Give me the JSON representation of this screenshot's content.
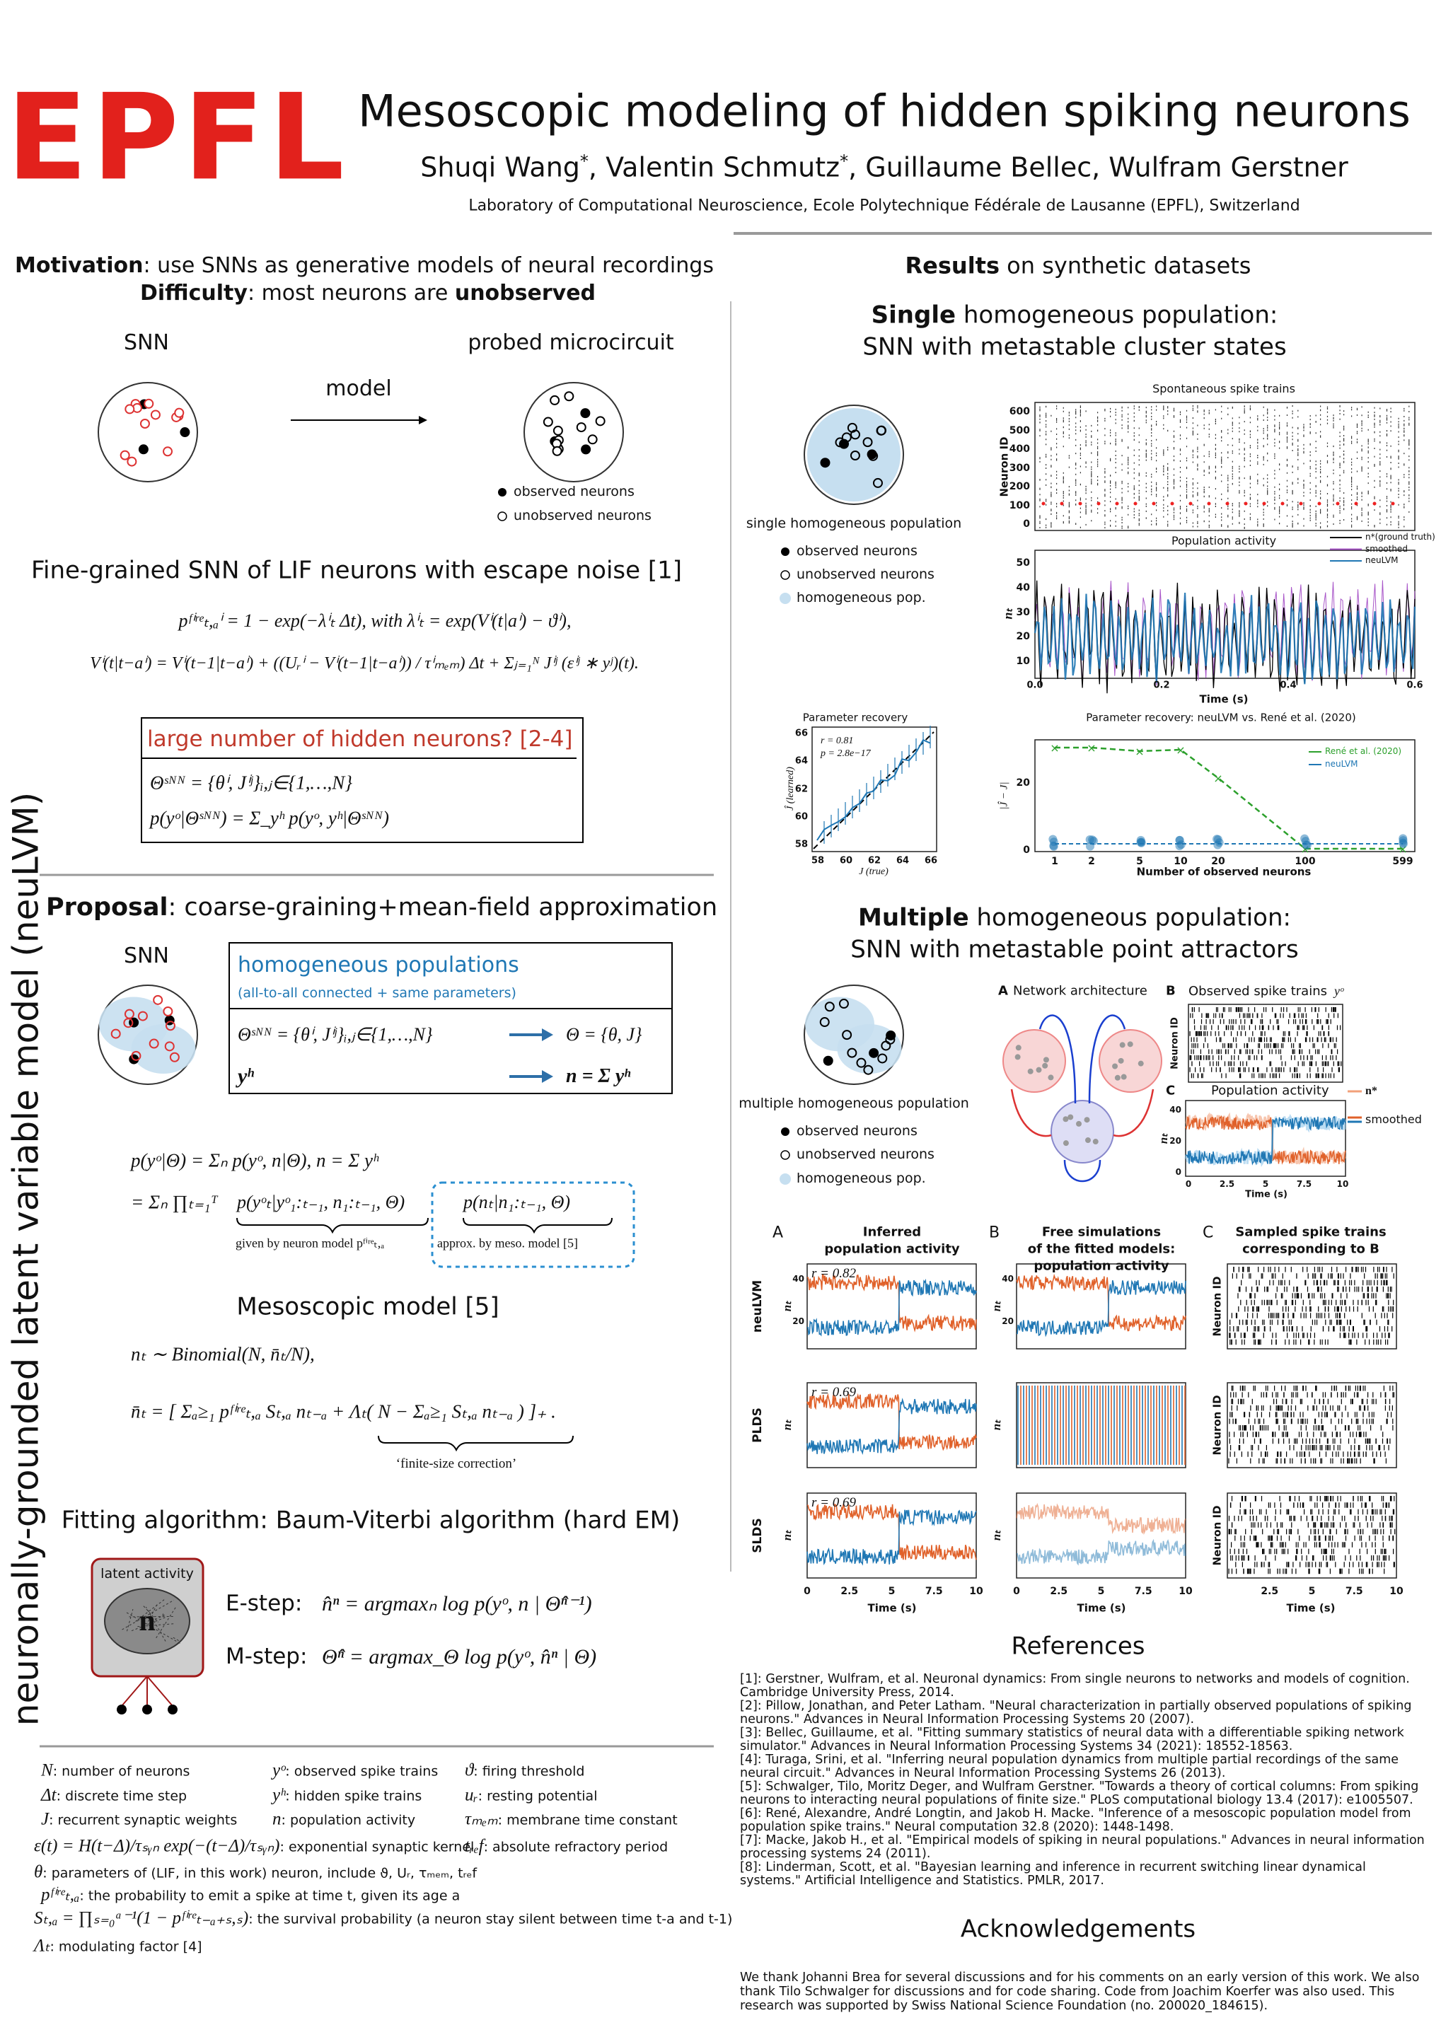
{
  "header": {
    "logo": "EPFL",
    "title": "Mesoscopic modeling of hidden spiking neurons",
    "authors": [
      "Shuqi Wang",
      "*",
      ", Valentin Schmutz",
      "*",
      ", Guillaume Bellec, Wulfram Gerstner"
    ],
    "affiliation": "Laboratory of Computational Neuroscience, Ecole Polytechnique Fédérale de Lausanne (EPFL), Switzerland"
  },
  "side_label": "neuronally-grounded latent variable model (neuLVM)",
  "motivation": {
    "label": "Motivation",
    "text": ": use SNNs as generative models of neural recordings",
    "difficulty_label": "Difficulty",
    "difficulty_text": ": most neurons are ",
    "difficulty_emph": "unobserved",
    "snn": "SNN",
    "probed": "probed microcircuit",
    "arrow_label": "model",
    "legend": [
      "observed neurons",
      "unobserved neurons"
    ]
  },
  "fine_grained": {
    "title": "Fine-grained SNN of LIF neurons with escape noise [1]",
    "eq1": "pᶠⁱʳᵉₜ,ₐⁱ = 1 − exp(−λⁱₜ Δt),    with λⁱₜ = exp(Vⁱ(t|aⁱ) − ϑⁱ),",
    "eq2": "Vⁱ(t|t−aⁱ) = Vⁱ(t−1|t−aⁱ) + ((Uᵣⁱ − Vⁱ(t−1|t−aⁱ)) / τⁱₘₑₘ) Δt + Σⱼ₌₁ᴺ Jⁱʲ (εⁱʲ ∗ yʲ)(t).",
    "box_title": "large number of hidden neurons? [2-4]",
    "box_eq1": "Θˢᴺᴺ = {θⁱ, Jⁱʲ}ᵢ,ⱼ∈{1,…,N}",
    "box_eq2": "p(yᵒ|Θˢᴺᴺ) = Σ_yʰ p(yᵒ, yʰ|Θˢᴺᴺ)"
  },
  "proposal": {
    "label": "Proposal",
    "text": ": coarse-graining+mean-field approximation",
    "snn": "SNN",
    "box_title": "homogeneous populations",
    "box_subtitle": "(all-to-all connected + same parameters)",
    "map1_left": "Θˢᴺᴺ = {θⁱ, Jⁱʲ}ᵢ,ⱼ∈{1,…,N}",
    "map1_right": "Θ = {θ, J}",
    "map2_left": "yʰ",
    "map2_right": "n = Σ yʰ",
    "eq1": "p(yᵒ|Θ) = Σₙ p(yᵒ, n|Θ),  n = Σ yʰ",
    "eq2_a": "= Σₙ ∏ₜ₌₁ᵀ",
    "eq2_b": "p(yᵒₜ|yᵒ₁:ₜ₋₁, n₁:ₜ₋₁, Θ)",
    "eq2_c": "p(nₜ|n₁:ₜ₋₁, Θ)",
    "note_b": "given by neuron model pᶠⁱʳᵉₜ,ₐ",
    "note_c": "approx. by meso. model [5]"
  },
  "mesoscopic": {
    "title": "Mesoscopic model [5]",
    "eq1": "nₜ ∼ Binomial(N, n̄ₜ/N),",
    "eq2": "n̄ₜ = [ Σₐ≥₁ pᶠⁱʳᵉₜ,ₐ Sₜ,ₐ nₜ₋ₐ + Λₜ( N − Σₐ≥₁ Sₜ,ₐ nₜ₋ₐ ) ]₊ .",
    "note": "‘finite-size correction’"
  },
  "fitting": {
    "title": "Fitting algorithm: Baum-Viterbi algorithm (hard EM)",
    "latent": "latent activity",
    "n": "n",
    "estep_label": "E-step:",
    "estep": "n̂ⁿ = argmaxₙ log p(yᵒ, n | Θ̂ⁿ⁻¹)",
    "mstep_label": "M-step:",
    "mstep": "Θ̂ⁿ = argmax_Θ log p(yᵒ, n̂ⁿ | Θ)"
  },
  "notation": [
    {
      "symbol": "N",
      "text": ": number of neurons"
    },
    {
      "symbol": "yᵒ",
      "text": ": observed spike trains"
    },
    {
      "symbol": "ϑ",
      "text": ": firing threshold"
    },
    {
      "symbol": "Δt",
      "text": ": discrete time step"
    },
    {
      "symbol": "yʰ",
      "text": ": hidden spike trains"
    },
    {
      "symbol": "uᵣ",
      "text": ": resting potential"
    },
    {
      "symbol": "J",
      "text": ": recurrent synaptic weights"
    },
    {
      "symbol": "n",
      "text": ": population activity"
    },
    {
      "symbol": "τₘₑₘ",
      "text": ": membrane time constant"
    },
    {
      "symbol": "ε(t) = H(t−Δ)/τₛᵧₙ exp(−(t−Δ)/τₛᵧₙ)",
      "text": ": exponential synaptic kernel"
    },
    {
      "symbol": "tᵣₑf",
      "text": ": absolute refractory period"
    },
    {
      "symbol": "θ",
      "text": ": parameters of (LIF, in this work) neuron, include ϑ, Uᵣ, τₘₑₘ, tᵣₑf"
    },
    {
      "symbol": "pᶠⁱʳᵉₜ,ₐ",
      "text": ": the probability to emit a spike at time t, given its age a"
    },
    {
      "symbol": "Sₜ,ₐ = ∏ₛ₌₀ᵃ⁻¹(1 − pᶠⁱʳᵉₜ₋ₐ₊ₛ,ₛ)",
      "text": ": the survival probability (a neuron stay silent between time t-a and t-1)"
    },
    {
      "symbol": "Λₜ",
      "text": ": modulating factor [4]"
    }
  ],
  "results": {
    "title_bold": "Results",
    "title_rest": " on synthetic datasets",
    "single": {
      "title_bold": "Single",
      "title_rest": " homogeneous population:",
      "subtitle": "SNN with metastable cluster states",
      "caption": "single homogeneous population",
      "legend": [
        "observed neurons",
        "unobserved neurons",
        "homogeneous pop."
      ],
      "raster": {
        "title": "Spontaneous spike trains",
        "ylabel": "Neuron ID",
        "yticks": [
          "600",
          "500",
          "400",
          "300",
          "200",
          "100",
          "0"
        ]
      },
      "activity": {
        "title": "Population activity",
        "ylabel": "nₜ",
        "yticks": [
          "50",
          "40",
          "30",
          "20",
          "10"
        ],
        "xticks": [
          "0.0",
          "0.2",
          "0.4",
          "0.6"
        ],
        "xlabel": "Time (s)",
        "legend": [
          "n*(ground truth)",
          "smoothed",
          "neuLVM"
        ]
      },
      "recovery": {
        "title": "Parameter recovery",
        "r": "r = 0.81",
        "p": "p = 2.8e−17",
        "xlabel": "J (true)",
        "ylabel": "Ĵ (learned)",
        "xticks": [
          "58",
          "60",
          "62",
          "64",
          "66"
        ],
        "yticks": [
          "66",
          "64",
          "62",
          "60",
          "58"
        ]
      },
      "comparison": {
        "title": "Parameter recovery: neuLVM vs. René et al. (2020)",
        "legend": [
          "René et al. (2020)",
          "neuLVM"
        ],
        "ylabel": "|Ĵ − J|",
        "yticks": [
          "20",
          "0"
        ],
        "xticks": [
          "1",
          "2",
          "5",
          "10",
          "20",
          "100",
          "599"
        ],
        "xlabel": "Number of observed neurons"
      }
    },
    "multiple": {
      "title_bold": "Multiple",
      "title_rest": " homogeneous population:",
      "subtitle": "SNN with metastable point attractors",
      "caption": "multiple homogeneous population",
      "legend": [
        "observed neurons",
        "unobserved neurons",
        "homogeneous pop."
      ],
      "panel_a": {
        "letter": "A",
        "title": "Network architecture"
      },
      "panel_b": {
        "letter": "B",
        "title": "Observed spike trains",
        "symbol": "yᵒ",
        "ylabel": "Neuron ID"
      },
      "panel_c": {
        "letter": "C",
        "title": "Population activity",
        "ylabel": "nₜ",
        "yticks": [
          "40",
          "20",
          "0"
        ],
        "xticks": [
          "0",
          "2.5",
          "5",
          "7.5",
          "10"
        ],
        "xlabel": "Time (s)",
        "legend": [
          "n*",
          "smoothed"
        ]
      },
      "grid": {
        "columns": [
          {
            "letter": "A",
            "lines": [
              "Inferred",
              "population activity"
            ]
          },
          {
            "letter": "B",
            "lines": [
              "Free simulations",
              "of the fitted models:",
              "population activity"
            ]
          },
          {
            "letter": "C",
            "lines": [
              "Sampled spike trains",
              "corresponding to B"
            ]
          }
        ],
        "rows": [
          {
            "model": "neuLVM",
            "r": "r = 0.82"
          },
          {
            "model": "PLDS",
            "r": "r = 0.69"
          },
          {
            "model": "SLDS",
            "r": "r = 0.69"
          }
        ],
        "ylabel_activity": "nₜ",
        "ylabel_spikes": "Neuron ID",
        "yticks": [
          "40",
          "20"
        ],
        "xticks": [
          "0",
          "2.5",
          "5",
          "7.5",
          "10"
        ],
        "xticks_spikes": [
          "2.5",
          "5",
          "7.5",
          "10"
        ],
        "xlabel": "Time (s)"
      }
    }
  },
  "references": {
    "title": "References",
    "items": [
      "[1]: Gerstner, Wulfram, et al. Neuronal dynamics: From single neurons to networks and models of cognition. Cambridge University Press, 2014.",
      "[2]: Pillow, Jonathan, and Peter Latham. \"Neural characterization in partially observed populations of spiking neurons.\" Advances in Neural Information Processing Systems 20 (2007).",
      "[3]: Bellec, Guillaume, et al. \"Fitting summary statistics of neural data with a differentiable spiking network simulator.\" Advances in Neural Information Processing Systems 34 (2021): 18552-18563.",
      "[4]: Turaga, Srini, et al. \"Inferring neural population dynamics from multiple partial recordings of the same neural circuit.\" Advances in Neural Information Processing Systems 26 (2013).",
      "[5]: Schwalger, Tilo, Moritz Deger, and Wulfram Gerstner. \"Towards a theory of cortical columns: From spiking neurons to interacting neural populations of finite size.\" PLoS computational biology 13.4 (2017): e1005507.",
      "[6]: René, Alexandre, André Longtin, and Jakob H. Macke. \"Inference of a mesoscopic population model from population spike trains.\" Neural computation 32.8 (2020): 1448-1498.",
      "[7]: Macke, Jakob H., et al. \"Empirical models of spiking in neural populations.\" Advances in neural information processing systems 24 (2011).",
      "[8]: Linderman, Scott, et al. \"Bayesian learning and inference in recurrent switching linear dynamical systems.\" Artificial Intelligence and Statistics. PMLR, 2017."
    ]
  },
  "acknowledgements": {
    "title": "Acknowledgements",
    "text": "We thank Johanni Brea for several discussions and for his comments on an early version of this work. We also thank Tilo Schwalger for discussions and for code sharing. Code from Joachim Koerfer was also used. This research was supported by Swiss National Science Foundation (no. 200020_184615)."
  }
}
